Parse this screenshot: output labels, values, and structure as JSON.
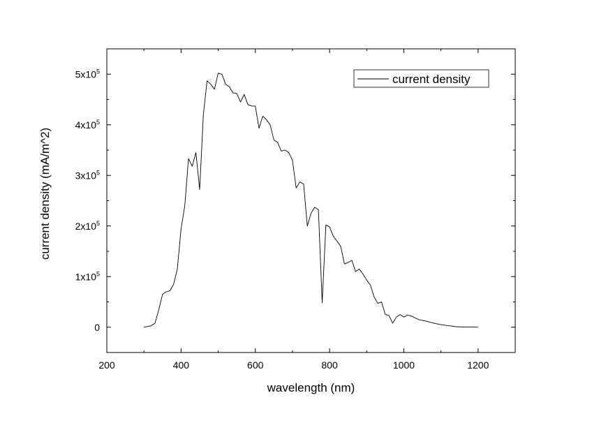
{
  "chart_data": {
    "type": "line",
    "title": "",
    "xlabel": "wavelength (nm)",
    "ylabel": "current density (mA/m^2)",
    "xlim": [
      200,
      1300
    ],
    "ylim": [
      -50000,
      550000
    ],
    "x_ticks": [
      200,
      400,
      600,
      800,
      1000,
      1200
    ],
    "x_tick_labels": [
      "200",
      "400",
      "600",
      "800",
      "1000",
      "1200"
    ],
    "y_ticks": [
      0,
      100000,
      200000,
      300000,
      400000,
      500000
    ],
    "y_tick_labels": [
      {
        "base": "0",
        "exp": ""
      },
      {
        "base": "1x10",
        "exp": "5"
      },
      {
        "base": "2x10",
        "exp": "5"
      },
      {
        "base": "3x10",
        "exp": "5"
      },
      {
        "base": "4x10",
        "exp": "5"
      },
      {
        "base": "5x10",
        "exp": "5"
      }
    ],
    "grid": false,
    "legend": {
      "placement": "top-right",
      "entries": [
        "current density"
      ]
    },
    "series": [
      {
        "name": "current density",
        "color": "#000000",
        "x": [
          300,
          320,
          330,
          340,
          350,
          360,
          370,
          380,
          390,
          400,
          410,
          420,
          430,
          440,
          450,
          460,
          470,
          480,
          490,
          500,
          510,
          520,
          530,
          540,
          550,
          560,
          570,
          580,
          590,
          600,
          610,
          620,
          630,
          640,
          650,
          660,
          670,
          680,
          690,
          700,
          710,
          720,
          730,
          740,
          750,
          760,
          770,
          780,
          790,
          800,
          810,
          820,
          830,
          840,
          850,
          860,
          870,
          880,
          890,
          900,
          910,
          920,
          930,
          940,
          950,
          960,
          970,
          980,
          990,
          1000,
          1010,
          1020,
          1040,
          1060,
          1080,
          1100,
          1120,
          1140,
          1160,
          1180,
          1200
        ],
        "y": [
          0,
          3000,
          8000,
          35000,
          65000,
          70000,
          72000,
          85000,
          115000,
          195000,
          240000,
          333000,
          318000,
          345000,
          272000,
          420000,
          487000,
          480000,
          470000,
          502000,
          500000,
          480000,
          475000,
          463000,
          462000,
          445000,
          460000,
          440000,
          437000,
          437000,
          393000,
          417000,
          410000,
          400000,
          370000,
          365000,
          348000,
          350000,
          345000,
          330000,
          275000,
          287000,
          283000,
          200000,
          225000,
          237000,
          232000,
          48000,
          202000,
          198000,
          180000,
          170000,
          160000,
          125000,
          128000,
          132000,
          110000,
          115000,
          105000,
          93000,
          83000,
          60000,
          47000,
          50000,
          25000,
          23000,
          8000,
          20000,
          25000,
          20000,
          24000,
          22000,
          15000,
          12000,
          8000,
          5000,
          3000,
          1000,
          500,
          200,
          100
        ]
      }
    ]
  }
}
